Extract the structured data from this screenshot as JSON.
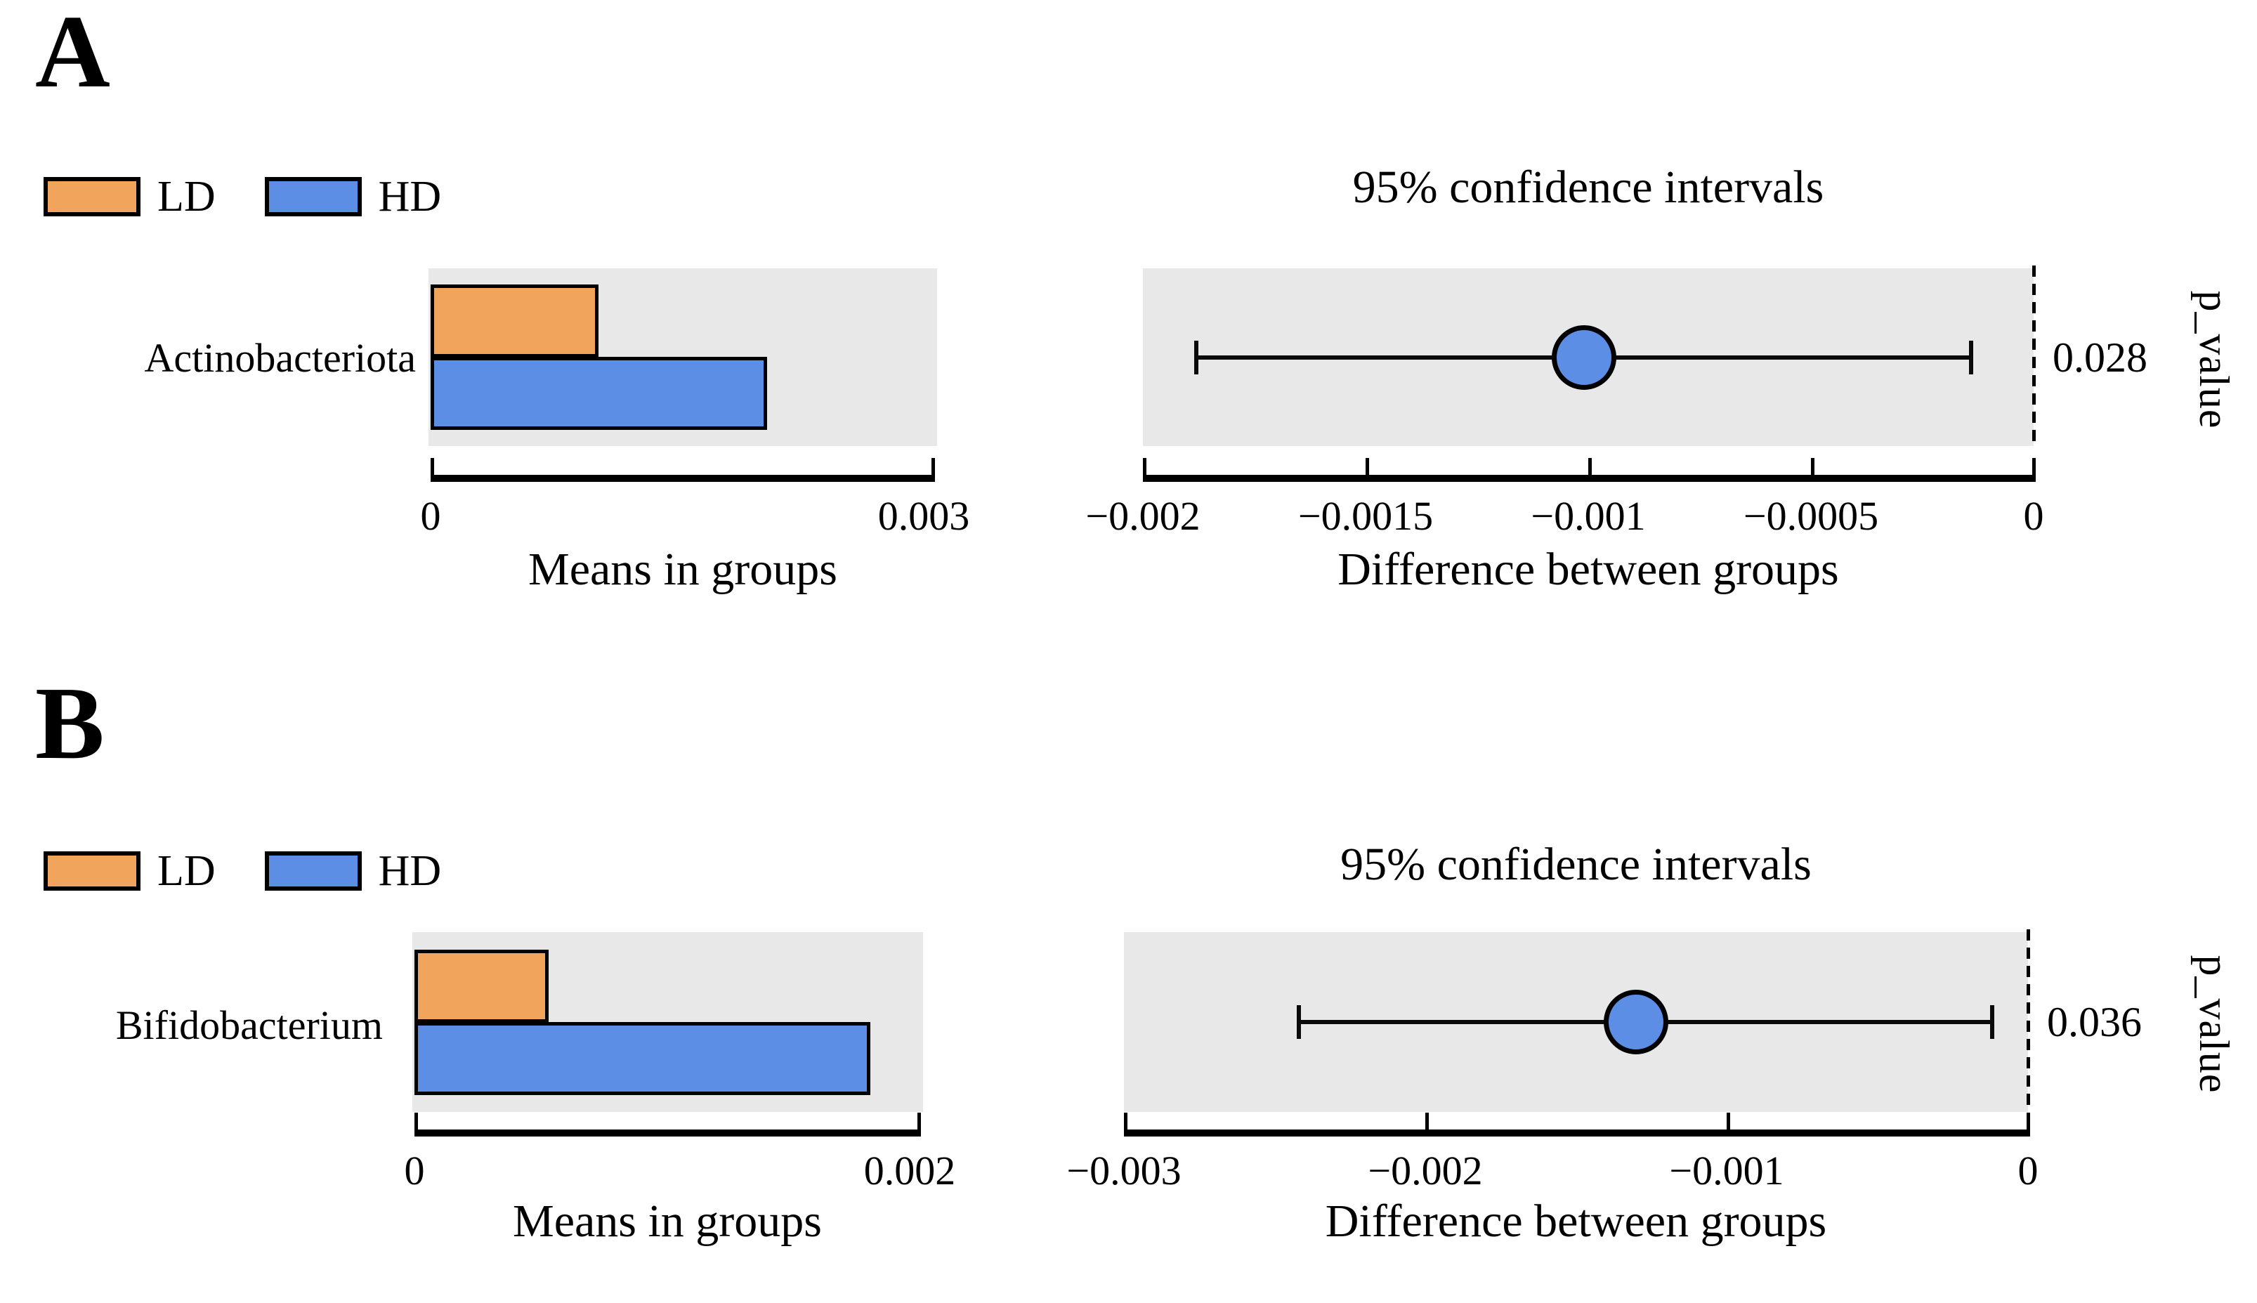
{
  "figure_background": "#FFFFFF",
  "plot_background": "#E8E8E8",
  "chart_data": [
    {
      "type": "bar",
      "panel": "A",
      "taxon": "Actinobacteriota",
      "groups": [
        "LD",
        "HD"
      ],
      "group_colors": [
        "#F0A45C",
        "#5C8EE6"
      ],
      "means": {
        "LD": 0.001,
        "HD": 0.002
      },
      "bar_axis": {
        "label": "Means in groups",
        "min": 0,
        "max": 0.003,
        "ticks": [
          0,
          0.003
        ],
        "tick_labels": [
          "0",
          "0.003"
        ]
      },
      "ci_title": "95% confidence intervals",
      "difference": {
        "mean": -0.00101,
        "ci_low": -0.00188,
        "ci_high": -0.00014
      },
      "ci_axis": {
        "label": "Difference between groups",
        "min": -0.002,
        "max": 0,
        "ticks": [
          -0.002,
          -0.0015,
          -0.001,
          -0.0005,
          0
        ],
        "tick_labels": [
          "−0.002",
          "−0.0015",
          "−0.001",
          "−0.0005",
          "0"
        ]
      },
      "p_value": "0.028",
      "p_axis_label": "p_value",
      "marker_color": "#5C8EE6",
      "zero_line_style": "dashed"
    },
    {
      "type": "bar",
      "panel": "B",
      "taxon": "Bifidobacterium",
      "groups": [
        "LD",
        "HD"
      ],
      "group_colors": [
        "#F0A45C",
        "#5C8EE6"
      ],
      "means": {
        "LD": 0.00053,
        "HD": 0.0018
      },
      "bar_axis": {
        "label": "Means in groups",
        "min": 0,
        "max": 0.002,
        "ticks": [
          0,
          0.002
        ],
        "tick_labels": [
          "0",
          "0.002"
        ]
      },
      "ci_title": "95% confidence intervals",
      "difference": {
        "mean": -0.0013,
        "ci_low": -0.00242,
        "ci_high": -0.00012
      },
      "ci_axis": {
        "label": "Difference between groups",
        "min": -0.003,
        "max": 0,
        "ticks": [
          -0.003,
          -0.002,
          -0.001,
          0
        ],
        "tick_labels": [
          "−0.003",
          "−0.002",
          "−0.001",
          "0"
        ]
      },
      "p_value": "0.036",
      "p_axis_label": "p_value",
      "marker_color": "#5C8EE6",
      "zero_line_style": "dashed"
    }
  ]
}
